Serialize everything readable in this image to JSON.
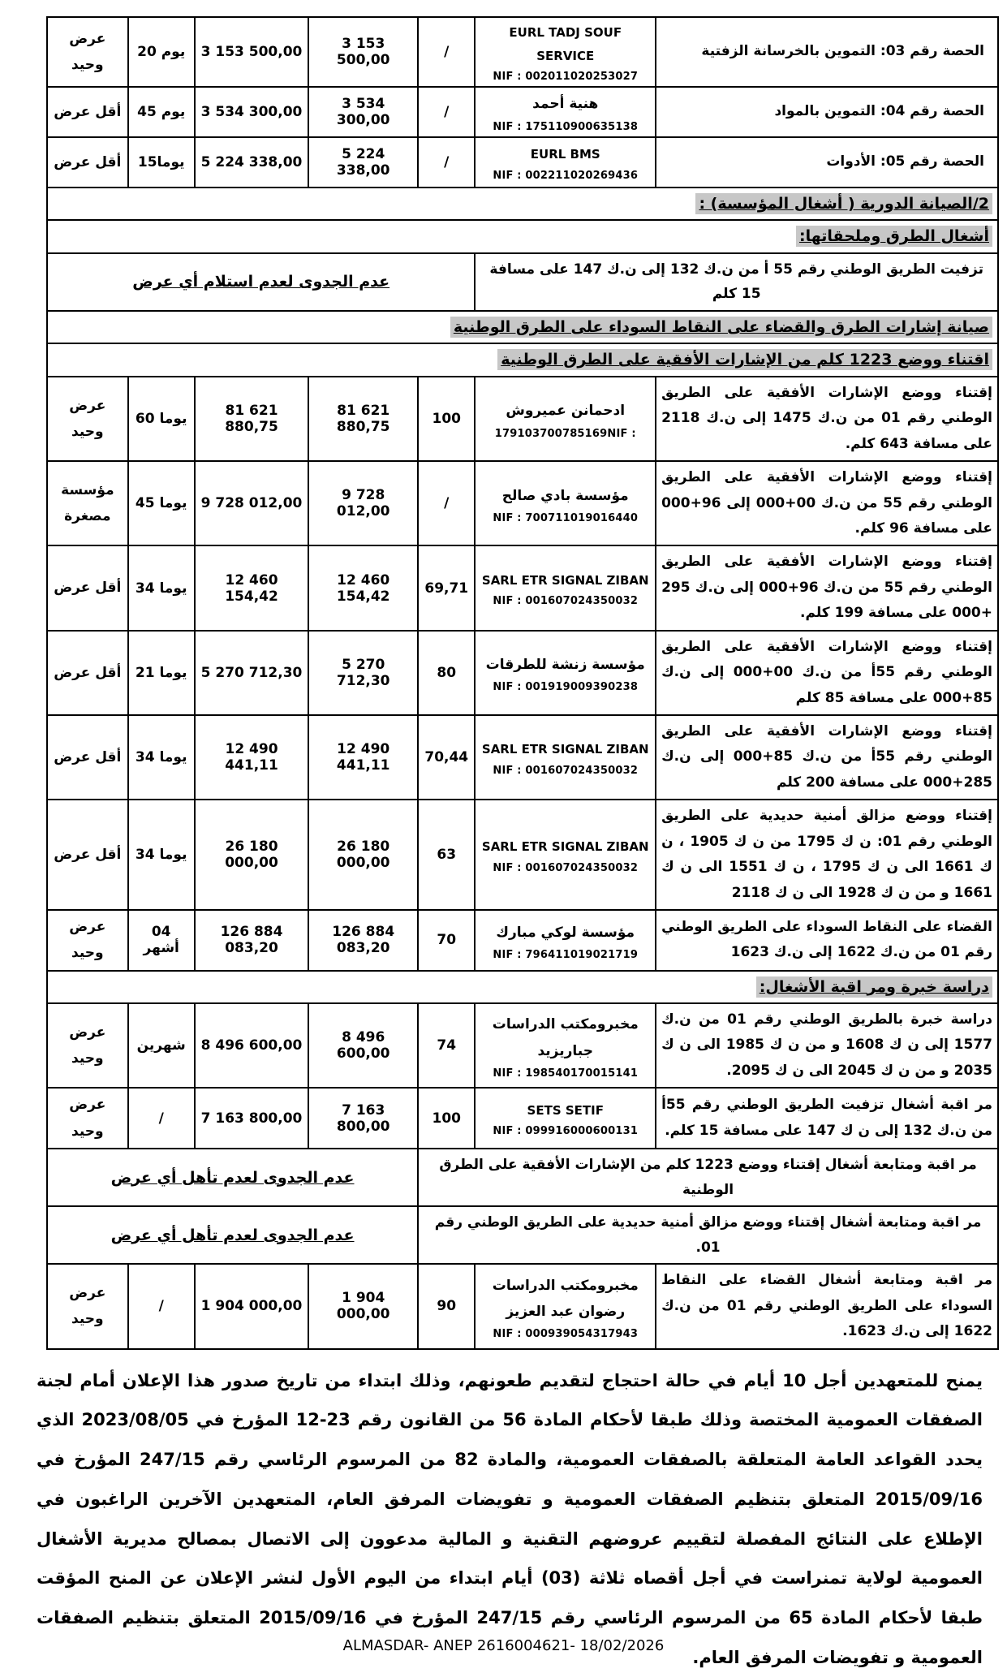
{
  "meta": {
    "highlight_color": "#c7c7c7",
    "border_color": "#000000",
    "text_color": "#000000"
  },
  "rows": [
    {
      "type": "lot",
      "desc": "الحصة رقم 03: التموين بالخرسانة الزفتية",
      "company": "EURL TADJ SOUF SERVICE",
      "nif": "NIF : 002011020253027",
      "note": "/",
      "amount": "3 153 500,00",
      "amount_corrected": "3 153 500,00",
      "duration": "20 يوم",
      "observation": "عرض وحيد"
    },
    {
      "type": "lot",
      "desc": "الحصة رقم 04: التموين بالمواد",
      "company": "هنية أحمد",
      "nif": "NIF : 175110900635138",
      "note": "/",
      "amount": "3 534 300,00",
      "amount_corrected": "3 534 300,00",
      "duration": "45 يوم",
      "observation": "أقل عرض"
    },
    {
      "type": "lot",
      "desc": "الحصة رقم 05: الأدوات",
      "company": "EURL BMS",
      "nif": "NIF : 002211020269436",
      "note": "/",
      "amount": "5 224 338,00",
      "amount_corrected": "5 224 338,00",
      "duration": "15يوما",
      "observation": "أقل عرض"
    },
    {
      "type": "section",
      "text": "2/الصيانة الدورية ( أشغال المؤسسة) :"
    },
    {
      "type": "section",
      "text": "أشغال الطرق وملحقاتها:"
    },
    {
      "type": "merged",
      "right": "تزفيت الطريق الوطني رقم 55 أ من ن.ك 132 إلى ن.ك 147 على مسافة 15 كلم",
      "left": "عدم الجدوى لعدم استلام أي عرض"
    },
    {
      "type": "section",
      "text": "صيانة إشارات الطرق والقضاء على النقاط السوداء على الطرق الوطنية"
    },
    {
      "type": "section",
      "text": "اقتناء ووضع 1223 كلم من الإشارات الأفقية على الطرق الوطنية"
    },
    {
      "type": "data",
      "desc": "إقتناء ووضع الإشارات الأفقية على الطريق الوطني رقم 01 من ن.ك 1475 إلى ن.ك 2118 على مسافة 643 كلم.",
      "company": "ادحمانن عميروش",
      "nif": "179103700785169NIF :",
      "note": "100",
      "amount": "81 621 880,75",
      "amount_corrected": "81 621 880,75",
      "duration": "60 يوما",
      "observation": "عرض وحيد"
    },
    {
      "type": "data",
      "desc": "إقتناء ووضع الإشارات الأفقية على الطريق الوطني رقم 55 من ن.ك 00+000 إلى 96+000 على مسافة 96 كلم.",
      "company": "مؤسسة بادي صالح",
      "nif": "NIF : 700711019016440",
      "note": "/",
      "amount": "9 728 012,00",
      "amount_corrected": "9 728 012,00",
      "duration": "45 يوما",
      "observation": "مؤسسة\nمصغرة"
    },
    {
      "type": "data",
      "desc": "إقتناء ووضع الإشارات الأفقية على الطريق الوطني رقم 55 من ن.ك 96+000 إلى ن.ك 295 +000 على مسافة 199 كلم.",
      "company": "SARL ETR SIGNAL ZIBAN",
      "nif": "NIF : 001607024350032",
      "note": "69,71",
      "amount": "12 460 154,42",
      "amount_corrected": "12 460 154,42",
      "duration": "34 يوما",
      "observation": "أقل عرض"
    },
    {
      "type": "data",
      "desc": "إقتناء ووضع الإشارات الأفقية على الطريق الوطني رقم 55أ من ن.ك 00+000 إلى ن.ك 85+000 على مسافة 85 كلم",
      "company": "مؤسسة زنشة للطرقات",
      "nif": "NIF : 001919009390238",
      "note": "80",
      "amount": "5 270 712,30",
      "amount_corrected": "5 270 712,30",
      "duration": "21 يوما",
      "observation": "أقل عرض"
    },
    {
      "type": "data",
      "desc": "إقتناء ووضع الإشارات الأفقية على الطريق الوطني رقم 55أ من ن.ك 85+000 إلى ن.ك 285+000 على مسافة 200 كلم",
      "company": "SARL ETR SIGNAL ZIBAN",
      "nif": "NIF : 001607024350032",
      "note": "70,44",
      "amount": "12 490 441,11",
      "amount_corrected": "12 490 441,11",
      "duration": "34 يوما",
      "observation": "أقل عرض"
    },
    {
      "type": "data",
      "desc": "إقتناء ووضع مزالق أمنية حديدية على الطريق الوطني رقم 01: ن ك 1795 من ن ك 1905 ، ن ك 1661 الى ن ك 1795 ، ن ك 1551 الى ن ك 1661 و من ن ك 1928 الى ن ك 2118",
      "company": "SARL ETR SIGNAL ZIBAN",
      "nif": "NIF : 001607024350032",
      "note": "63",
      "amount": "26 180 000,00",
      "amount_corrected": "26 180 000,00",
      "duration": "34 يوما",
      "observation": "أقل عرض"
    },
    {
      "type": "data",
      "desc": "القضاء على النقاط السوداء على الطريق الوطني رقم 01 من ن.ك 1622 إلى ن.ك 1623",
      "company": "مؤسسة لوكي مبارك",
      "nif": "NIF : 796411019021719",
      "note": "70",
      "amount": "126 884 083,20",
      "amount_corrected": "126 884 083,20",
      "duration": "04 أشهر",
      "observation": "عرض وحيد"
    },
    {
      "type": "section",
      "text": "دراسة خبرة ومر اقبة الأشغال:"
    },
    {
      "type": "data",
      "desc": "دراسة خبرة بالطريق الوطني رقم 01 من ن.ك 1577 إلى ن ك 1608 و من ن ك 1985 الى ن ك 2035 و من ن ك 2045 الى ن ك 2095.",
      "company": "مخبرومكتب الدراسات\nجباريزيد",
      "nif": "NIF : 198540170015141",
      "note": "74",
      "amount": "8 496 600,00",
      "amount_corrected": "8 496 600,00",
      "duration": "شهرين",
      "observation": "عرض وحيد"
    },
    {
      "type": "data",
      "desc": "مر اقبة أشغال تزفيت الطريق الوطني رقم 55أ من ن.ك 132 إلى ن ك 147 على مسافة 15 كلم.",
      "company": "SETS SETIF",
      "nif": "NIF : 099916000600131",
      "note": "100",
      "amount": "7 163 800,00",
      "amount_corrected": "7 163 800,00",
      "duration": "/",
      "observation": "عرض وحيد"
    },
    {
      "type": "merged",
      "right": "مر اقبة ومتابعة أشغال إقتناء ووضع 1223 كلم من الإشارات الأفقية على الطرق الوطنية",
      "left": "عدم الجدوى لعدم تأهل أي عرض"
    },
    {
      "type": "merged",
      "right": "مر اقبة ومتابعة أشغال إقتناء ووضع مزالق أمنية حديدية على الطريق الوطني رقم 01.",
      "left": "عدم الجدوى لعدم تأهل أي عرض"
    },
    {
      "type": "data",
      "desc": "مر اقبة ومتابعة أشغال القضاء على النقاط السوداء على الطريق الوطني رقم 01 من ن.ك 1622 إلى ن.ك 1623.",
      "company": "مخبرومكتب الدراسات\nرضوان عبد العزيز",
      "nif": "NIF : 000939054317943",
      "note": "90",
      "amount": "1 904 000,00",
      "amount_corrected": "1 904 000,00",
      "duration": "/",
      "observation": "عرض وحيد"
    }
  ],
  "legal_paragraph": "يمنح للمتعهدين أجل 10 أيام في حالة احتجاج لتقديم طعونهم، وذلك ابتداء من تاريخ صدور هذا الإعلان أمام لجنة الصفقات العمومية المختصة وذلك طبقا لأحكام المادة 56 من القانون رقم 23-12 المؤرخ في 2023/08/05 الذي يحدد القواعد العامة المتعلقة بالصفقات العمومية، والمادة 82 من المرسوم الرئاسي رقم 247/15 المؤرخ في 2015/09/16 المتعلق بتنظيم الصفقات العمومية و تفويضات المرفق العام، المتعهدين الآخرين الراغبون في الإطلاع على النتائج المفصلة لتقييم عروضهم التقنية و المالية مدعوون إلى الاتصال بمصالح مديرية الأشغال العمومية لولاية تمنراست في أجل أقصاه ثلاثة (03) أيام ابتداء من اليوم الأول لنشر الإعلان عن المنح المؤقت طبقا لأحكام المادة 65 من المرسوم الرئاسي رقم 247/15 المؤرخ في 2015/09/16 المتعلق بتنظيم الصفقات العمومية و تفويضات المرفق العام.",
  "anep_line": "ALMASDAR- ANEP 2616004621- 18/02/2026"
}
